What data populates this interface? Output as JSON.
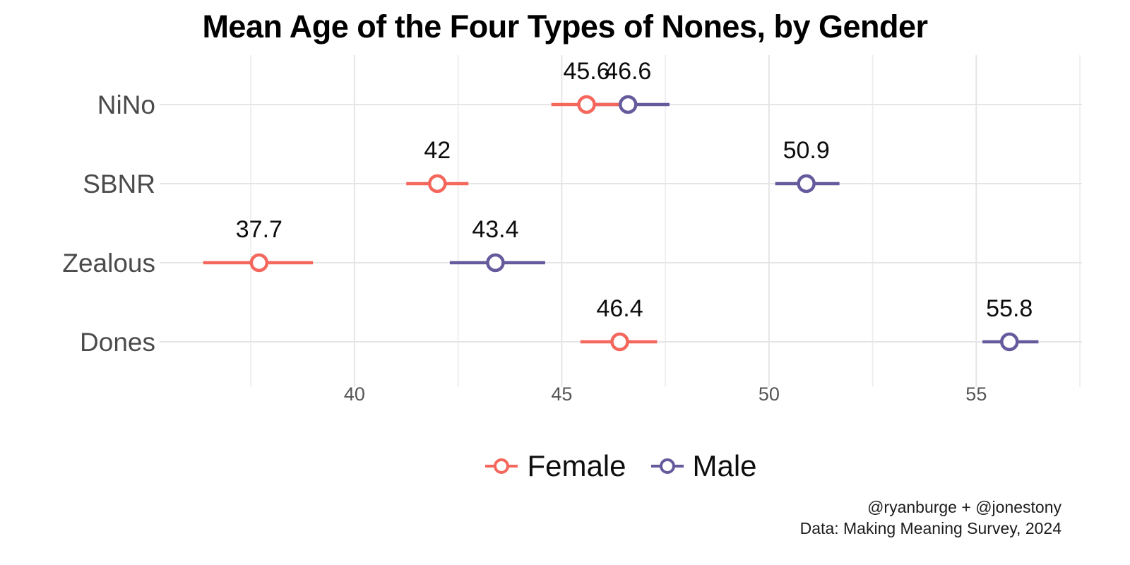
{
  "title": "Mean Age of the Four Types of Nones, by Gender",
  "caption": {
    "line1": "@ryanburge + @jonestony",
    "line2": "Data: Making Meaning Survey, 2024"
  },
  "legend": {
    "items": [
      {
        "label": "Female",
        "color": "#f4675d"
      },
      {
        "label": "Male",
        "color": "#665a9d"
      }
    ]
  },
  "colors": {
    "female": "#f4675d",
    "male": "#665a9d",
    "grid_major": "#e5e5e5",
    "grid_minor": "#ededed",
    "axis_text": "#4b4b4b",
    "tick_text": "#555555",
    "value_label": "#0d0d0d",
    "background": "#ffffff",
    "point_fill": "#ffffff"
  },
  "chart_data": {
    "type": "scatter",
    "subtype": "pointrange-dotplot",
    "orientation": "horizontal",
    "title": "Mean Age of the Four Types of Nones, by Gender",
    "xlabel": "",
    "ylabel": "",
    "grid": true,
    "legend_position": "bottom",
    "categories": [
      "NiNo",
      "SBNR",
      "Zealous",
      "Dones"
    ],
    "x_axis": {
      "ticks": [
        40,
        45,
        50,
        55
      ],
      "minor_ticks": [
        37.5,
        42.5,
        47.5,
        52.5,
        57.5
      ],
      "range": [
        35.3,
        57.55
      ]
    },
    "series": [
      {
        "name": "Female",
        "color": "#f4675d",
        "points": [
          {
            "category": "NiNo",
            "value": 45.6,
            "label": "45.6",
            "low": 44.75,
            "high": 46.4
          },
          {
            "category": "SBNR",
            "value": 42.0,
            "label": "42",
            "low": 41.25,
            "high": 42.75
          },
          {
            "category": "Zealous",
            "value": 37.7,
            "label": "37.7",
            "low": 36.35,
            "high": 39.0
          },
          {
            "category": "Dones",
            "value": 46.4,
            "label": "46.4",
            "low": 45.45,
            "high": 47.3
          }
        ]
      },
      {
        "name": "Male",
        "color": "#665a9d",
        "points": [
          {
            "category": "NiNo",
            "value": 46.6,
            "label": "46.6",
            "low": 45.65,
            "high": 47.6
          },
          {
            "category": "SBNR",
            "value": 50.9,
            "label": "50.9",
            "low": 50.15,
            "high": 51.7
          },
          {
            "category": "Zealous",
            "value": 43.4,
            "label": "43.4",
            "low": 42.3,
            "high": 44.6
          },
          {
            "category": "Dones",
            "value": 55.8,
            "label": "55.8",
            "low": 55.15,
            "high": 56.5
          }
        ]
      }
    ]
  }
}
